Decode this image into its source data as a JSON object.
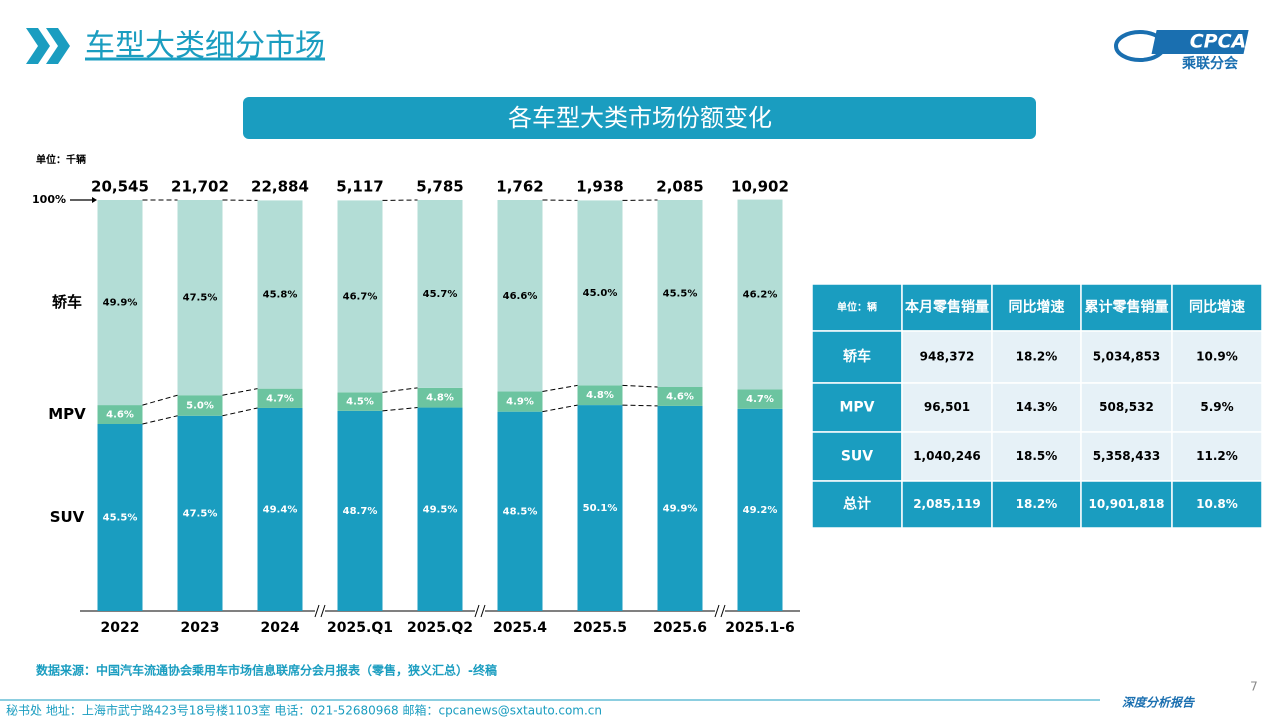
{
  "header": {
    "title": "车型大类细分市场",
    "logo_text": "CPCA",
    "logo_subtext": "乘联分会"
  },
  "chart_data": {
    "type": "stacked-bar",
    "title": "各车型大类市场份额变化",
    "unit": "单位：千辆",
    "categories": [
      "2022",
      "2023",
      "2024",
      "2025.Q1",
      "2025.Q2",
      "2025.4",
      "2025.5",
      "2025.6",
      "2025.1-6"
    ],
    "totals": {
      "values": [
        20545,
        21702,
        22884,
        5117,
        5785,
        1762,
        1938,
        2085,
        10902
      ],
      "value_labels": [
        "20,545",
        "21,702",
        "22,884",
        "5,117",
        "5,785",
        "1,762",
        "1,938",
        "2,085",
        "10,902"
      ]
    },
    "series": [
      {
        "name": "SUV",
        "color": "#1a9dc0",
        "values": [
          45.5,
          47.5,
          49.4,
          48.7,
          49.5,
          48.5,
          50.1,
          49.9,
          49.2
        ],
        "value_labels": [
          "45.5%",
          "47.5%",
          "49.4%",
          "48.7%",
          "49.5%",
          "48.5%",
          "50.1%",
          "49.9%",
          "49.2%"
        ]
      },
      {
        "name": "MPV",
        "color": "#6cc4a0",
        "values": [
          4.6,
          5.0,
          4.7,
          4.5,
          4.8,
          4.9,
          4.8,
          4.6,
          4.7
        ],
        "value_labels": [
          "4.6%",
          "5.0%",
          "4.7%",
          "4.5%",
          "4.8%",
          "4.9%",
          "4.8%",
          "4.6%",
          "4.7%"
        ]
      },
      {
        "name": "轿车",
        "color": "#b3ddd6",
        "values": [
          49.9,
          47.5,
          45.8,
          46.7,
          45.7,
          46.6,
          45.0,
          45.5,
          46.2
        ],
        "value_labels": [
          "49.9%",
          "47.5%",
          "45.8%",
          "46.7%",
          "45.7%",
          "46.6%",
          "45.0%",
          "45.5%",
          "46.2%"
        ]
      }
    ],
    "ylim": [
      0,
      100
    ],
    "yticks": [
      {
        "value": 100,
        "label": "100%"
      }
    ]
  },
  "table": {
    "header": [
      "单位：辆",
      "本月零售销量",
      "同比增速",
      "累计零售销量",
      "同比增速"
    ],
    "rows": [
      [
        "轿车",
        "948,372",
        "18.2%",
        "5,034,853",
        "10.9%"
      ],
      [
        "MPV",
        "96,501",
        "14.3%",
        "508,532",
        "5.9%"
      ],
      [
        "SUV",
        "1,040,246",
        "18.5%",
        "5,358,433",
        "11.2%"
      ],
      [
        "总计",
        "2,085,119",
        "18.2%",
        "10,901,818",
        "10.8%"
      ]
    ]
  },
  "source": "数据来源：中国汽车流通协会乘用车市场信息联席分会月报表（零售，狭义汇总）-终稿",
  "footer": {
    "address": "秘书处  地址：上海市武宁路423号18号楼1103室  电话：021-52680968  邮箱：cpcanews@sxtauto.com.cn",
    "report": "深度分析报告",
    "page": "7"
  }
}
